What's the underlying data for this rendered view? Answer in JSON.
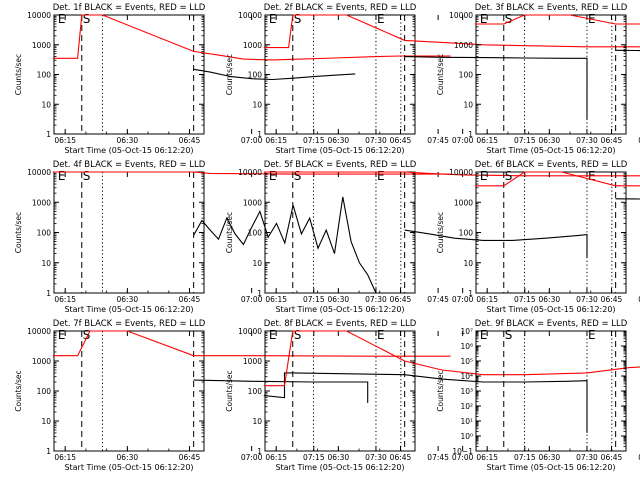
{
  "colors": {
    "events": "#000000",
    "lld": "#ff0000",
    "axis": "#000000",
    "background": "#ffffff"
  },
  "x_ticks": [
    "06:15",
    "06:30",
    "06:45",
    "07:00",
    "07:15",
    "07:30",
    "07:45"
  ],
  "x_label": "Start Time (05-Oct-15 06:12:20)",
  "y_label": "Counts/sec",
  "markers": [
    {
      "label": "E",
      "time": "06:13",
      "style": "none"
    },
    {
      "label": "S",
      "time": "06:19",
      "style": "dashed"
    },
    {
      "label": "",
      "time": "06:24",
      "style": "dotted"
    },
    {
      "label": "",
      "time": "06:46",
      "style": "dashed"
    },
    {
      "label": "E",
      "time": "07:30",
      "style": "dotted"
    },
    {
      "label": "",
      "time": "07:36",
      "style": "dotted"
    }
  ],
  "chart_data": [
    {
      "type": "line",
      "title": "Det. 1f  BLACK = Events, RED = LLD",
      "ylim": [
        1,
        10000
      ],
      "y_ticks": [
        "1",
        "10",
        "100",
        "1000",
        "10000"
      ],
      "series": [
        {
          "name": "Events",
          "color": "black",
          "points": [
            [
              "06:46",
              150
            ],
            [
              "06:50",
              120
            ],
            [
              "06:55",
              85
            ],
            [
              "07:00",
              72
            ],
            [
              "07:05",
              68
            ],
            [
              "07:10",
              75
            ],
            [
              "07:15",
              85
            ],
            [
              "07:20",
              95
            ],
            [
              "07:25",
              105
            ]
          ]
        },
        {
          "name": "LLD",
          "color": "red",
          "points": [
            [
              "06:12",
              350
            ],
            [
              "06:18",
              350
            ],
            [
              "06:19",
              10000
            ],
            [
              "06:24",
              10000
            ],
            [
              "06:46",
              600
            ],
            [
              "06:52",
              450
            ],
            [
              "06:58",
              330
            ],
            [
              "07:05",
              310
            ],
            [
              "07:12",
              330
            ],
            [
              "07:20",
              360
            ],
            [
              "07:30",
              400
            ],
            [
              "07:36",
              420
            ],
            [
              "07:48",
              420
            ]
          ]
        }
      ]
    },
    {
      "type": "line",
      "title": "Det. 2f  BLACK = Events, RED = LLD",
      "ylim": [
        1,
        10000
      ],
      "y_ticks": [
        "1",
        "10",
        "100",
        "1000",
        "10000"
      ],
      "series": [
        {
          "name": "Events",
          "color": "black",
          "points": [
            [
              "06:46",
              400
            ],
            [
              "06:55",
              380
            ],
            [
              "07:05",
              370
            ],
            [
              "07:15",
              360
            ],
            [
              "07:25",
              350
            ],
            [
              "07:30",
              350
            ],
            [
              "07:30",
              3
            ]
          ]
        },
        {
          "name": "LLD",
          "color": "red",
          "points": [
            [
              "06:12",
              800
            ],
            [
              "06:18",
              800
            ],
            [
              "06:19",
              10000
            ],
            [
              "06:32",
              10000
            ],
            [
              "06:46",
              1400
            ],
            [
              "06:55",
              1200
            ],
            [
              "07:05",
              1000
            ],
            [
              "07:20",
              900
            ],
            [
              "07:30",
              850
            ],
            [
              "07:48",
              850
            ]
          ]
        }
      ]
    },
    {
      "type": "line",
      "title": "Det. 3f  BLACK = Events, RED = LLD",
      "ylim": [
        1,
        10000
      ],
      "y_ticks": [
        "1",
        "10",
        "100",
        "1000",
        "10000"
      ],
      "series": [
        {
          "name": "Events",
          "color": "black",
          "points": [
            [
              "06:46",
              650
            ],
            [
              "07:00",
              620
            ],
            [
              "07:15",
              600
            ],
            [
              "07:33",
              600
            ],
            [
              "07:33",
              35
            ]
          ]
        },
        {
          "name": "LLD",
          "color": "red",
          "points": [
            [
              "06:12",
              5000
            ],
            [
              "06:19",
              5000
            ],
            [
              "06:24",
              10000
            ],
            [
              "06:35",
              10000
            ],
            [
              "06:46",
              5000
            ],
            [
              "07:00",
              5000
            ],
            [
              "07:30",
              5000
            ],
            [
              "07:48",
              5000
            ]
          ]
        }
      ]
    },
    {
      "type": "line",
      "title": "Det. 4f  BLACK = Events, RED = LLD",
      "ylim": [
        1,
        10000
      ],
      "y_ticks": [
        "1",
        "10",
        "100",
        "1000",
        "10000"
      ],
      "series": [
        {
          "name": "Events",
          "color": "black",
          "points": [
            [
              "06:46",
              80
            ],
            [
              "06:48",
              250
            ],
            [
              "06:50",
              120
            ],
            [
              "06:52",
              60
            ],
            [
              "06:54",
              300
            ],
            [
              "06:56",
              90
            ],
            [
              "06:58",
              40
            ],
            [
              "07:00",
              150
            ],
            [
              "07:02",
              500
            ],
            [
              "07:04",
              70
            ],
            [
              "07:06",
              200
            ],
            [
              "07:08",
              45
            ],
            [
              "07:10",
              800
            ],
            [
              "07:12",
              90
            ],
            [
              "07:14",
              300
            ],
            [
              "07:16",
              30
            ],
            [
              "07:18",
              120
            ],
            [
              "07:20",
              20
            ],
            [
              "07:22",
              1500
            ],
            [
              "07:24",
              50
            ],
            [
              "07:26",
              10
            ],
            [
              "07:28",
              4
            ],
            [
              "07:29",
              2
            ],
            [
              "07:30",
              1
            ]
          ]
        },
        {
          "name": "LLD",
          "color": "red",
          "points": [
            [
              "06:12",
              10000
            ],
            [
              "06:46",
              10000
            ],
            [
              "06:50",
              9000
            ],
            [
              "07:10",
              8500
            ],
            [
              "07:30",
              8500
            ],
            [
              "07:48",
              8500
            ]
          ]
        }
      ]
    },
    {
      "type": "line",
      "title": "Det. 5f  BLACK = Events, RED = LLD",
      "ylim": [
        1,
        10000
      ],
      "y_ticks": [
        "1",
        "10",
        "100",
        "1000",
        "10000"
      ],
      "series": [
        {
          "name": "Events",
          "color": "black",
          "points": [
            [
              "06:46",
              120
            ],
            [
              "06:52",
              90
            ],
            [
              "06:58",
              65
            ],
            [
              "07:05",
              55
            ],
            [
              "07:12",
              55
            ],
            [
              "07:20",
              65
            ],
            [
              "07:28",
              80
            ],
            [
              "07:30",
              85
            ],
            [
              "07:30",
              15
            ]
          ]
        },
        {
          "name": "LLD",
          "color": "red",
          "points": [
            [
              "06:12",
              10000
            ],
            [
              "06:46",
              10000
            ],
            [
              "06:52",
              9000
            ],
            [
              "07:00",
              8000
            ],
            [
              "07:15",
              7500
            ],
            [
              "07:30",
              7500
            ],
            [
              "07:48",
              7500
            ]
          ]
        }
      ]
    },
    {
      "type": "line",
      "title": "Det. 6f  BLACK = Events, RED = LLD",
      "ylim": [
        1,
        10000
      ],
      "y_ticks": [
        "1",
        "10",
        "100",
        "1000",
        "10000"
      ],
      "series": [
        {
          "name": "Events",
          "color": "black",
          "points": [
            [
              "06:46",
              1300
            ],
            [
              "07:00",
              1250
            ],
            [
              "07:15",
              1200
            ],
            [
              "07:36",
              1150
            ],
            [
              "07:36",
              120
            ]
          ]
        },
        {
          "name": "LLD",
          "color": "red",
          "points": [
            [
              "06:12",
              3500
            ],
            [
              "06:19",
              3500
            ],
            [
              "06:24",
              10000
            ],
            [
              "06:33",
              10000
            ],
            [
              "06:46",
              3500
            ],
            [
              "07:00",
              3500
            ],
            [
              "07:30",
              3500
            ],
            [
              "07:48",
              3500
            ]
          ]
        }
      ]
    },
    {
      "type": "line",
      "title": "Det. 7f  BLACK = Events, RED = LLD",
      "ylim": [
        1,
        10000
      ],
      "y_ticks": [
        "1",
        "10",
        "100",
        "1000",
        "10000"
      ],
      "series": [
        {
          "name": "Events",
          "color": "black",
          "points": [
            [
              "06:46",
              230
            ],
            [
              "07:00",
              210
            ],
            [
              "07:15",
              200
            ],
            [
              "07:28",
              200
            ],
            [
              "07:28",
              40
            ]
          ]
        },
        {
          "name": "LLD",
          "color": "red",
          "points": [
            [
              "06:12",
              1500
            ],
            [
              "06:18",
              1500
            ],
            [
              "06:21",
              10000
            ],
            [
              "06:30",
              10000
            ],
            [
              "06:46",
              1500
            ],
            [
              "07:00",
              1500
            ],
            [
              "07:30",
              1450
            ],
            [
              "07:48",
              1450
            ]
          ]
        }
      ]
    },
    {
      "type": "line",
      "title": "Det. 8f  BLACK = Events, RED = LLD",
      "ylim": [
        1,
        10000
      ],
      "y_ticks": [
        "1",
        "10",
        "100",
        "1000",
        "10000"
      ],
      "series": [
        {
          "name": "Events",
          "color": "black",
          "points": [
            [
              "06:12",
              70
            ],
            [
              "06:17",
              60
            ],
            [
              "06:17",
              400
            ],
            [
              "06:19",
              400
            ],
            [
              "06:46",
              350
            ],
            [
              "06:55",
              250
            ],
            [
              "07:05",
              200
            ],
            [
              "07:15",
              200
            ],
            [
              "07:25",
              210
            ],
            [
              "07:30",
              220
            ],
            [
              "07:30",
              4
            ]
          ]
        },
        {
          "name": "LLD",
          "color": "red",
          "points": [
            [
              "06:12",
              150
            ],
            [
              "06:17",
              150
            ],
            [
              "06:18",
              1200
            ],
            [
              "06:19",
              10000
            ],
            [
              "06:32",
              10000
            ],
            [
              "06:46",
              1000
            ],
            [
              "06:55",
              500
            ],
            [
              "07:05",
              350
            ],
            [
              "07:15",
              350
            ],
            [
              "07:30",
              400
            ],
            [
              "07:40",
              600
            ],
            [
              "07:48",
              700
            ]
          ]
        }
      ]
    },
    {
      "type": "line",
      "title": "Det. 9f  BLACK = Events, RED = LLD",
      "ylim": [
        0.1,
        10000000
      ],
      "y_log": true,
      "y_ticks": [
        "10−1",
        "10⁰",
        "10¹",
        "10²",
        "10³",
        "10⁴",
        "10⁵",
        "10⁶",
        "10⁷"
      ],
      "series": []
    }
  ]
}
